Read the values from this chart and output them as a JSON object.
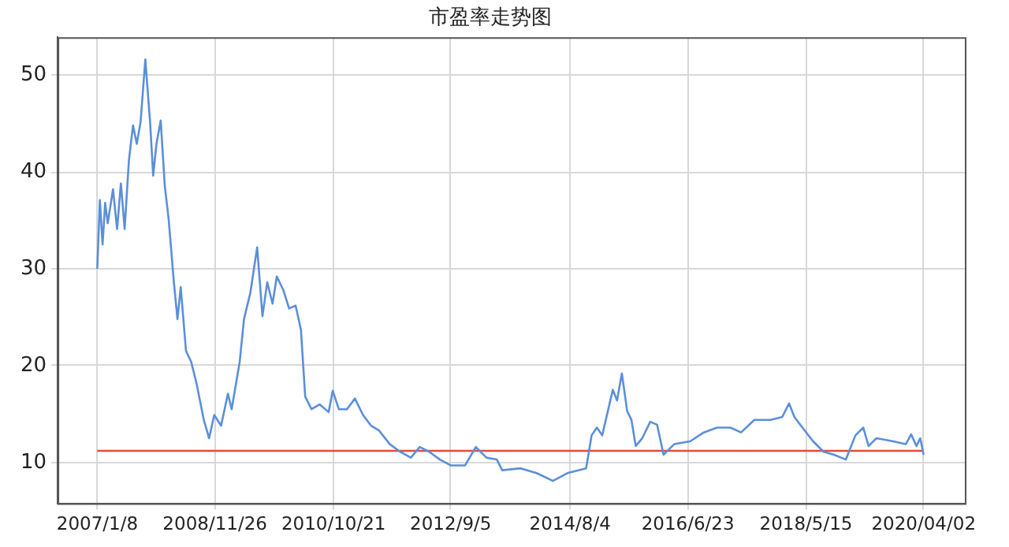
{
  "chart_data": {
    "type": "line",
    "title": "市盈率走势图",
    "x": [
      "2007-01-08",
      "2007-01-23",
      "2007-02-08",
      "2007-02-23",
      "2007-03-10",
      "2007-04-10",
      "2007-05-04",
      "2007-05-26",
      "2007-06-17",
      "2007-07-12",
      "2007-08-05",
      "2007-08-27",
      "2007-09-18",
      "2007-10-16",
      "2007-11-13",
      "2007-12-01",
      "2007-12-20",
      "2008-01-14",
      "2008-02-07",
      "2008-02-29",
      "2008-03-31",
      "2008-04-21",
      "2008-05-10",
      "2008-06-10",
      "2008-07-10",
      "2008-08-10",
      "2008-09-22",
      "2008-10-23",
      "2008-11-22",
      "2009-01-01",
      "2009-02-10",
      "2009-03-04",
      "2009-04-20",
      "2009-05-15",
      "2009-06-21",
      "2009-07-31",
      "2009-08-31",
      "2009-09-28",
      "2009-10-29",
      "2009-11-23",
      "2009-12-31",
      "2010-02-03",
      "2010-03-13",
      "2010-04-13",
      "2010-05-08",
      "2010-06-14",
      "2010-07-31",
      "2010-09-22",
      "2010-10-16",
      "2010-11-21",
      "2011-01-07",
      "2011-02-23",
      "2011-04-11",
      "2011-05-28",
      "2011-07-14",
      "2011-09-14",
      "2011-11-15",
      "2012-01-16",
      "2012-03-08",
      "2012-05-03",
      "2012-07-04",
      "2012-09-05",
      "2012-11-28",
      "2013-01-30",
      "2013-04-02",
      "2013-06-02",
      "2013-07-03",
      "2013-10-19",
      "2014-01-21",
      "2014-04-26",
      "2014-07-19",
      "2014-11-06",
      "2014-12-08",
      "2015-01-08",
      "2015-02-08",
      "2015-04-11",
      "2015-05-06",
      "2015-06-03",
      "2015-07-04",
      "2015-07-29",
      "2015-08-23",
      "2015-09-30",
      "2015-11-16",
      "2015-12-26",
      "2016-02-02",
      "2016-04-05",
      "2016-07-08",
      "2016-09-24",
      "2016-12-11",
      "2017-02-27",
      "2017-04-30",
      "2017-07-17",
      "2017-10-19",
      "2017-12-27",
      "2018-02-05",
      "2018-03-08",
      "2018-04-24",
      "2018-06-25",
      "2018-08-26",
      "2018-10-27",
      "2019-01-03",
      "2019-02-28",
      "2019-04-15",
      "2019-05-16",
      "2019-07-01",
      "2019-10-03",
      "2019-12-20",
      "2020-01-20",
      "2020-02-20",
      "2020-03-13",
      "2020-04-02"
    ],
    "series": [
      {
        "color": "#5b8fd9",
        "values": [
          30.0,
          37.1,
          32.5,
          36.8,
          34.7,
          38.2,
          34.1,
          38.8,
          34.1,
          41.2,
          44.8,
          42.9,
          45.1,
          51.6,
          45.1,
          39.6,
          42.9,
          45.3,
          38.5,
          35.2,
          28.6,
          24.8,
          28.1,
          21.5,
          20.4,
          18.2,
          14.4,
          12.5,
          14.9,
          13.8,
          17.1,
          15.5,
          20.4,
          24.8,
          27.5,
          32.2,
          25.1,
          28.6,
          26.4,
          29.2,
          27.8,
          25.9,
          26.2,
          23.7,
          16.8,
          15.5,
          16.0,
          15.2,
          17.4,
          15.5,
          15.5,
          16.6,
          14.9,
          13.8,
          13.3,
          11.9,
          11.1,
          10.5,
          11.6,
          11.1,
          10.3,
          9.7,
          9.7,
          11.6,
          10.5,
          10.3,
          9.2,
          9.4,
          8.9,
          8.1,
          8.9,
          9.4,
          12.8,
          13.6,
          12.8,
          17.5,
          16.4,
          19.2,
          15.3,
          14.4,
          11.7,
          12.5,
          14.2,
          13.9,
          10.8,
          11.9,
          12.2,
          13.1,
          13.6,
          13.6,
          13.1,
          14.4,
          14.4,
          14.7,
          16.1,
          14.7,
          13.6,
          12.2,
          11.1,
          10.8,
          10.3,
          12.8,
          13.6,
          11.7,
          12.5,
          12.2,
          11.9,
          12.9,
          11.7,
          12.5,
          10.8
        ]
      },
      {
        "color": "#e8483a",
        "x": [
          "2007-01-08",
          "2020-04-02"
        ],
        "values": [
          11.2,
          11.2
        ]
      }
    ],
    "xlim": [
      "2006-05-21",
      "2020-11-29"
    ],
    "xticks": [
      {
        "value": "2007-01-08",
        "label": "2007/1/8"
      },
      {
        "value": "2008-11-26",
        "label": "2008/11/26"
      },
      {
        "value": "2010-10-21",
        "label": "2010/10/21"
      },
      {
        "value": "2012-09-05",
        "label": "2012/9/5"
      },
      {
        "value": "2014-08-04",
        "label": "2014/8/4"
      },
      {
        "value": "2016-06-23",
        "label": "2016/6/23"
      },
      {
        "value": "2018-05-15",
        "label": "2018/5/15"
      },
      {
        "value": "2020-04-02",
        "label": "2020/04/02"
      }
    ],
    "ylim": [
      5.8,
      53.9
    ],
    "yticks": [
      10,
      20,
      30,
      40,
      50
    ],
    "grid": true,
    "legend": false,
    "marker": "none",
    "line_style": "solid"
  }
}
